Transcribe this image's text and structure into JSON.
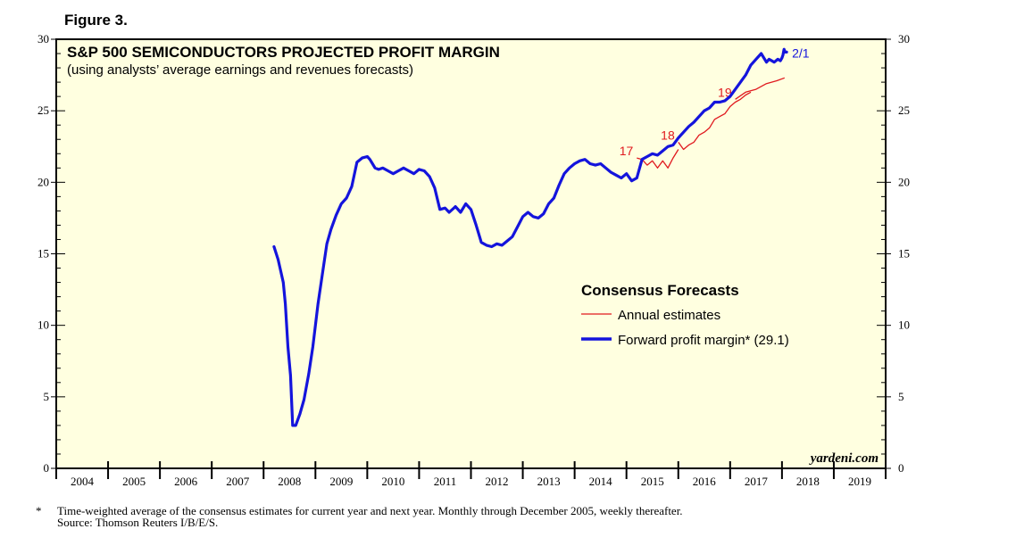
{
  "figure_label": "Figure 3.",
  "chart_data": {
    "type": "line",
    "title": "S&P 500 SEMICONDUCTORS PROJECTED PROFIT MARGIN",
    "subtitle": "(using analysts’ average earnings and revenues forecasts)",
    "xlabel": "",
    "ylabel": "",
    "ylim": [
      0,
      30
    ],
    "xlim": [
      2004.0,
      2020.0
    ],
    "y_ticks": [
      "0",
      "5",
      "10",
      "15",
      "20",
      "25",
      "30"
    ],
    "x_tick_labels": [
      "2004",
      "2005",
      "2006",
      "2007",
      "2008",
      "2009",
      "2010",
      "2011",
      "2012",
      "2013",
      "2014",
      "2015",
      "2016",
      "2017",
      "2018",
      "2019"
    ],
    "grid": false,
    "background": "#FFFFE0",
    "legend": {
      "title": "Consensus Forecasts",
      "placement": "center-right",
      "entries": [
        {
          "label": "Annual estimates",
          "color": "#E0191E"
        },
        {
          "label": "Forward profit margin* (29.1)",
          "color": "#1414DC"
        }
      ]
    },
    "series": [
      {
        "name": "Forward profit margin",
        "color": "#1414DC",
        "x": [
          2008.2,
          2008.28,
          2008.33,
          2008.38,
          2008.42,
          2008.47,
          2008.52,
          2008.56,
          2008.62,
          2008.7,
          2008.78,
          2008.87,
          2008.95,
          2009.05,
          2009.13,
          2009.22,
          2009.3,
          2009.4,
          2009.5,
          2009.6,
          2009.7,
          2009.8,
          2009.9,
          2010.0,
          2010.05,
          2010.1,
          2010.15,
          2010.22,
          2010.3,
          2010.4,
          2010.5,
          2010.6,
          2010.7,
          2010.8,
          2010.9,
          2011.0,
          2011.1,
          2011.2,
          2011.3,
          2011.4,
          2011.5,
          2011.58,
          2011.7,
          2011.8,
          2011.9,
          2012.0,
          2012.1,
          2012.2,
          2012.3,
          2012.4,
          2012.5,
          2012.6,
          2012.7,
          2012.8,
          2012.9,
          2013.0,
          2013.1,
          2013.2,
          2013.3,
          2013.4,
          2013.5,
          2013.6,
          2013.7,
          2013.8,
          2013.9,
          2014.0,
          2014.1,
          2014.2,
          2014.3,
          2014.4,
          2014.5,
          2014.6,
          2014.7,
          2014.8,
          2014.9,
          2015.0,
          2015.1,
          2015.2,
          2015.3,
          2015.4,
          2015.5,
          2015.6,
          2015.7,
          2015.8,
          2015.9,
          2016.0,
          2016.1,
          2016.2,
          2016.3,
          2016.4,
          2016.5,
          2016.6,
          2016.7,
          2016.8,
          2016.9,
          2017.0,
          2017.1,
          2017.2,
          2017.3,
          2017.4,
          2017.5,
          2017.6,
          2017.7,
          2017.75,
          2017.85,
          2017.92,
          2017.97,
          2018.0,
          2018.02,
          2018.04,
          2018.06,
          2018.09
        ],
        "y": [
          15.5,
          14.6,
          13.8,
          13.0,
          11.5,
          8.5,
          6.5,
          3.0,
          3.0,
          3.8,
          4.8,
          6.6,
          8.5,
          11.5,
          13.5,
          15.7,
          16.7,
          17.7,
          18.5,
          18.9,
          19.7,
          21.4,
          21.7,
          21.8,
          21.6,
          21.3,
          21.0,
          20.9,
          21.0,
          20.8,
          20.6,
          20.8,
          21.0,
          20.8,
          20.6,
          20.9,
          20.8,
          20.4,
          19.6,
          18.1,
          18.2,
          17.9,
          18.3,
          17.9,
          18.5,
          18.1,
          17.0,
          15.8,
          15.6,
          15.5,
          15.7,
          15.6,
          15.9,
          16.2,
          16.9,
          17.6,
          17.9,
          17.6,
          17.5,
          17.8,
          18.5,
          18.9,
          19.8,
          20.6,
          21.0,
          21.3,
          21.5,
          21.6,
          21.3,
          21.2,
          21.3,
          21.0,
          20.7,
          20.5,
          20.3,
          20.6,
          20.1,
          20.3,
          21.6,
          21.8,
          22.0,
          21.9,
          22.2,
          22.5,
          22.6,
          23.1,
          23.5,
          23.9,
          24.2,
          24.6,
          25.0,
          25.2,
          25.6,
          25.6,
          25.7,
          26.0,
          26.5,
          27.0,
          27.5,
          28.2,
          28.6,
          29.0,
          28.4,
          28.6,
          28.4,
          28.6,
          28.5,
          28.7,
          28.9,
          29.3,
          29.1,
          29.1
        ],
        "end_label": "2/1"
      },
      {
        "name": "Annual estimates",
        "color": "#E0191E",
        "segments": [
          {
            "label": "17",
            "x": [
              2015.2,
              2015.3,
              2015.4,
              2015.5,
              2015.6,
              2015.7,
              2015.8,
              2015.9,
              2016.0
            ],
            "y": [
              21.7,
              21.6,
              21.2,
              21.5,
              21.0,
              21.5,
              21.0,
              21.7,
              22.3
            ]
          },
          {
            "label": "18",
            "x": [
              2016.0,
              2016.1,
              2016.2,
              2016.3,
              2016.4,
              2016.5,
              2016.6,
              2016.7,
              2016.8,
              2016.9,
              2017.0,
              2017.1,
              2017.2,
              2017.3,
              2017.4
            ],
            "y": [
              22.8,
              22.3,
              22.6,
              22.8,
              23.3,
              23.5,
              23.8,
              24.4,
              24.6,
              24.8,
              25.3,
              25.6,
              25.8,
              26.1,
              26.3
            ]
          },
          {
            "label": "19",
            "x": [
              2017.1,
              2017.3,
              2017.5,
              2017.7,
              2017.9,
              2018.05
            ],
            "y": [
              25.8,
              26.3,
              26.5,
              26.9,
              27.1,
              27.3
            ]
          }
        ]
      }
    ]
  },
  "watermark": "yardeni.com",
  "footnote": {
    "star": "*",
    "note": "Time-weighted average of the consensus estimates for current year and next year. Monthly through December 2005, weekly thereafter.",
    "source": "Source: Thomson Reuters I/B/E/S."
  }
}
